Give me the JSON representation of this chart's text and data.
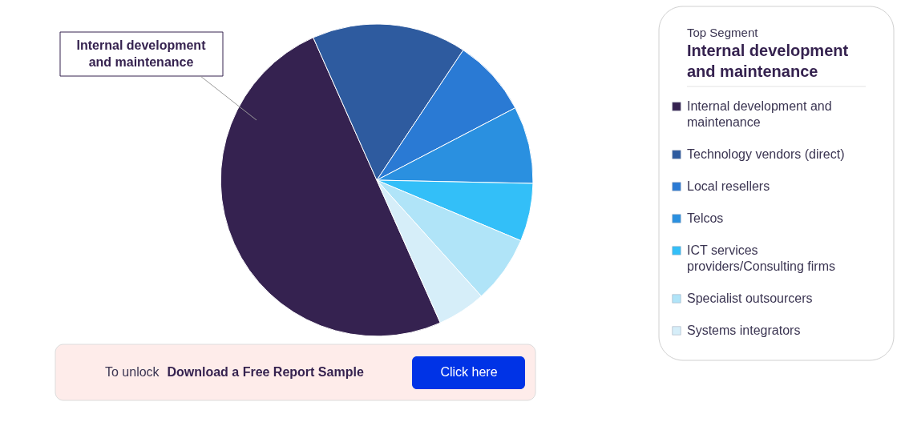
{
  "chart_data": {
    "type": "pie",
    "categories": [
      "Internal development and maintenance",
      "Technology vendors (direct)",
      "Local resellers",
      "Telcos",
      "ICT services providers/Consulting firms",
      "Specialist outsourcers",
      "Systems integrators"
    ],
    "values": [
      50,
      16,
      8,
      8,
      6,
      7,
      5
    ],
    "colors": [
      "#352250",
      "#2e5b9f",
      "#2a7ad4",
      "#2a90e0",
      "#33bff8",
      "#b0e4f8",
      "#d6eef9"
    ],
    "legend": "right",
    "legend_title": "Top Segment",
    "annotations": [
      "Internal development and maintenance",
      "Internal development and maintenance",
      "To unlock",
      "Download a Free Report Sample",
      "Click here"
    ]
  }
}
